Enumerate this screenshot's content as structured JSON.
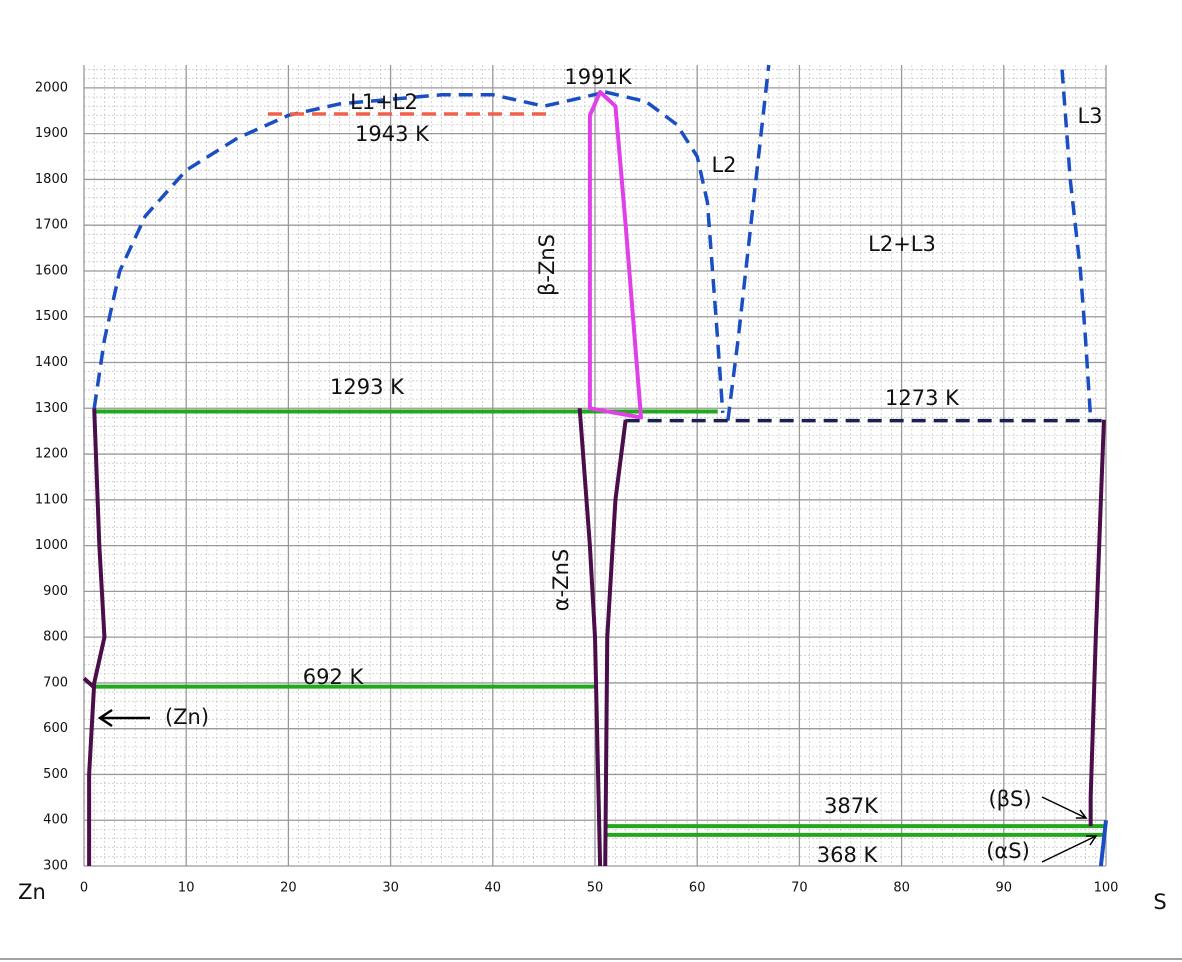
{
  "chart_data": {
    "type": "line",
    "xlim": [
      0,
      100
    ],
    "ylim": [
      300,
      2050
    ],
    "xticks": [
      0,
      10,
      20,
      30,
      40,
      50,
      60,
      70,
      80,
      90,
      100
    ],
    "yticks": [
      300,
      400,
      500,
      600,
      700,
      800,
      900,
      1000,
      1100,
      1200,
      1300,
      1400,
      1500,
      1600,
      1700,
      1800,
      1900,
      2000
    ],
    "grid": true,
    "minor_grid": true,
    "x_left_label": "Zn",
    "x_right_label": "S",
    "lines": [
      {
        "color": "#1a4fc4",
        "dashed": true,
        "x": [
          1,
          2,
          3.5,
          6,
          10,
          15,
          20,
          25,
          30,
          35,
          40,
          45,
          48,
          51
        ],
        "y": [
          1300,
          1450,
          1600,
          1720,
          1820,
          1890,
          1940,
          1965,
          1975,
          1985,
          1985,
          1960,
          1975,
          1991
        ]
      },
      {
        "color": "#1a4fc4",
        "dashed": true,
        "x": [
          51,
          55,
          58,
          60,
          61,
          61.5,
          62,
          62.5
        ],
        "y": [
          1991,
          1970,
          1920,
          1850,
          1750,
          1600,
          1450,
          1290
        ]
      },
      {
        "color": "#1a4fc4",
        "dashed": true,
        "x": [
          63,
          64,
          65,
          66,
          67
        ],
        "y": [
          1273,
          1450,
          1650,
          1850,
          2050
        ]
      },
      {
        "color": "#1a4fc4",
        "dashed": true,
        "x": [
          95.7,
          96.5,
          97.5,
          98,
          98.5
        ],
        "y": [
          2040,
          1800,
          1600,
          1450,
          1275
        ]
      },
      {
        "color": "#f0604a",
        "dashed": true,
        "x": [
          18,
          46
        ],
        "y": [
          1943,
          1943
        ]
      },
      {
        "color": "#1a2050",
        "dashed": true,
        "x": [
          53,
          100
        ],
        "y": [
          1273,
          1273
        ]
      },
      {
        "color": "#22a81c",
        "dashed": false,
        "x": [
          1,
          62
        ],
        "y": [
          1293,
          1293
        ]
      },
      {
        "color": "#22a81c",
        "dashed": false,
        "x": [
          1,
          50
        ],
        "y": [
          692,
          692
        ]
      },
      {
        "color": "#22a81c",
        "dashed": false,
        "x": [
          51,
          100
        ],
        "y": [
          387,
          387
        ]
      },
      {
        "color": "#22a81c",
        "dashed": false,
        "x": [
          51,
          100
        ],
        "y": [
          368,
          368
        ]
      },
      {
        "color": "#e040e8",
        "dashed": false,
        "closed": true,
        "x": [
          49.5,
          50.5,
          52,
          53,
          54.5,
          49.5
        ],
        "y": [
          1940,
          1991,
          1960,
          1700,
          1280,
          1300
        ]
      },
      {
        "color": "#4a0e4a",
        "dashed": false,
        "x": [
          48.5,
          49.5,
          50,
          50.5
        ],
        "y": [
          1300,
          1000,
          800,
          300
        ]
      },
      {
        "color": "#4a0e4a",
        "dashed": false,
        "x": [
          53,
          52,
          51.2,
          51
        ],
        "y": [
          1275,
          1100,
          800,
          300
        ]
      },
      {
        "color": "#4a0e4a",
        "dashed": false,
        "x": [
          1,
          1.5,
          2,
          1,
          0.5,
          0.5
        ],
        "y": [
          1300,
          1000,
          800,
          700,
          500,
          300
        ]
      },
      {
        "color": "#4a0e4a",
        "dashed": false,
        "x": [
          0,
          1
        ],
        "y": [
          710,
          690
        ]
      },
      {
        "color": "#4a0e4a",
        "dashed": false,
        "x": [
          99.8,
          99.5,
          99,
          98.5,
          98.5
        ],
        "y": [
          1275,
          1100,
          800,
          450,
          387
        ]
      },
      {
        "color": "#1a4fc4",
        "dashed": false,
        "x": [
          100,
          99.5
        ],
        "y": [
          400,
          300
        ]
      }
    ],
    "annotations": [
      "1991K",
      "L1+L2",
      "1943 K",
      "L2",
      "L3",
      "L2+L3",
      "β-ZnS",
      "1293 K",
      "1273 K",
      "α-ZnS",
      "692 K",
      "(Zn)",
      "387K",
      "368 K",
      "(βS)",
      "(αS)"
    ]
  }
}
